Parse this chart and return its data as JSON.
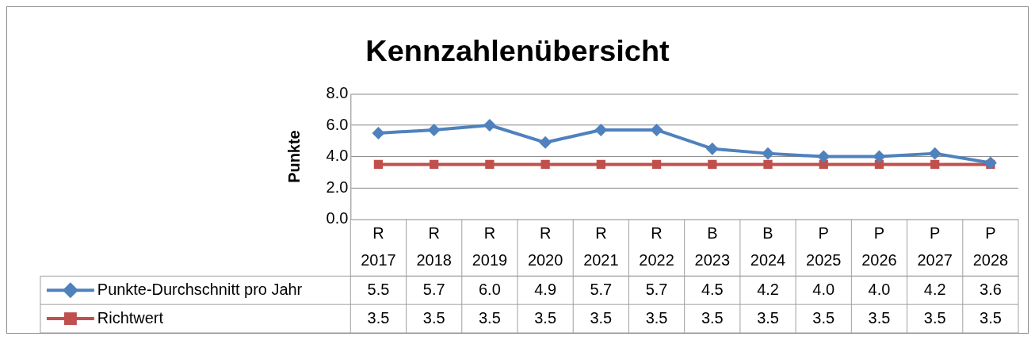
{
  "chart_data": {
    "type": "line",
    "title": "Kennzahlenübersicht",
    "ylabel": "Punkte",
    "categories": [
      "R\n2017",
      "R\n2018",
      "R\n2019",
      "R\n2020",
      "R\n2021",
      "R\n2022",
      "B\n2023",
      "B\n2024",
      "P\n2025",
      "P\n2026",
      "P\n2027",
      "P\n2028"
    ],
    "series": [
      {
        "name": "Punkte-Durchschnitt pro Jahr",
        "color": "#4f81bd",
        "marker": "diamond",
        "values": [
          5.5,
          5.7,
          6.0,
          4.9,
          5.7,
          5.7,
          4.5,
          4.2,
          4.0,
          4.0,
          4.2,
          3.6
        ],
        "value_labels": [
          "5.5",
          "5.7",
          "6.0",
          "4.9",
          "5.7",
          "5.7",
          "4.5",
          "4.2",
          "4.0",
          "4.0",
          "4.2",
          "3.6"
        ]
      },
      {
        "name": "Richtwert",
        "color": "#c0504d",
        "marker": "square",
        "values": [
          3.5,
          3.5,
          3.5,
          3.5,
          3.5,
          3.5,
          3.5,
          3.5,
          3.5,
          3.5,
          3.5,
          3.5
        ],
        "value_labels": [
          "3.5",
          "3.5",
          "3.5",
          "3.5",
          "3.5",
          "3.5",
          "3.5",
          "3.5",
          "3.5",
          "3.5",
          "3.5",
          "3.5"
        ]
      }
    ],
    "ylim": [
      0,
      8
    ],
    "yticks": [
      {
        "value": 0,
        "label": "0.0"
      },
      {
        "value": 2,
        "label": "2.0"
      },
      {
        "value": 4,
        "label": "4.0"
      },
      {
        "value": 6,
        "label": "6.0"
      },
      {
        "value": 8,
        "label": "8.0"
      }
    ],
    "grid": "y",
    "legend": "bottom",
    "line_style": "solid"
  }
}
